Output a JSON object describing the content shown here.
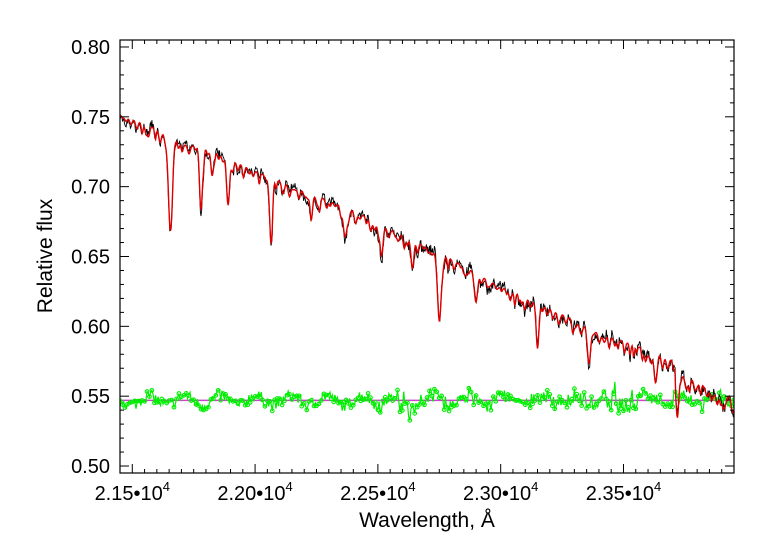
{
  "chart_data": {
    "type": "line",
    "xlabel": "Wavelength, Å",
    "ylabel": "Relative flux",
    "xlim": [
      21450,
      23950
    ],
    "ylim": [
      0.495,
      0.805
    ],
    "x_ticks": [
      21500,
      22000,
      22500,
      23000,
      23500
    ],
    "x_tick_labels": [
      {
        "mant": "2.15•10",
        "exp": "4"
      },
      {
        "mant": "2.20•10",
        "exp": "4"
      },
      {
        "mant": "2.25•10",
        "exp": "4"
      },
      {
        "mant": "2.30•10",
        "exp": "4"
      },
      {
        "mant": "2.35•10",
        "exp": "4"
      }
    ],
    "y_ticks": [
      0.5,
      0.55,
      0.6,
      0.65,
      0.7,
      0.75,
      0.8
    ],
    "y_tick_labels": [
      "0.50",
      "0.55",
      "0.60",
      "0.65",
      "0.70",
      "0.75",
      "0.80"
    ],
    "grid": false,
    "continuum": [
      [
        21450,
        0.752
      ],
      [
        21550,
        0.745
      ],
      [
        21650,
        0.737
      ],
      [
        21700,
        0.73
      ],
      [
        21800,
        0.728
      ],
      [
        22000,
        0.711
      ],
      [
        22200,
        0.697
      ],
      [
        22400,
        0.683
      ],
      [
        22600,
        0.665
      ],
      [
        22800,
        0.648
      ],
      [
        23000,
        0.628
      ],
      [
        23200,
        0.613
      ],
      [
        23400,
        0.595
      ],
      [
        23600,
        0.583
      ],
      [
        23800,
        0.568
      ],
      [
        23950,
        0.556
      ]
    ],
    "absorption_lines": [
      {
        "x": 21655,
        "depth": 0.067,
        "width": 8
      },
      {
        "x": 21780,
        "depth": 0.04,
        "width": 6
      },
      {
        "x": 21825,
        "depth": 0.018,
        "width": 5
      },
      {
        "x": 21890,
        "depth": 0.03,
        "width": 6
      },
      {
        "x": 22065,
        "depth": 0.042,
        "width": 6
      },
      {
        "x": 22230,
        "depth": 0.015,
        "width": 5
      },
      {
        "x": 22365,
        "depth": 0.015,
        "width": 6
      },
      {
        "x": 22515,
        "depth": 0.018,
        "width": 6
      },
      {
        "x": 22640,
        "depth": 0.015,
        "width": 6
      },
      {
        "x": 22750,
        "depth": 0.048,
        "width": 7
      },
      {
        "x": 22900,
        "depth": 0.02,
        "width": 6
      },
      {
        "x": 23150,
        "depth": 0.025,
        "width": 6
      },
      {
        "x": 23360,
        "depth": 0.025,
        "width": 6
      },
      {
        "x": 23630,
        "depth": 0.02,
        "width": 6
      },
      {
        "x": 23720,
        "depth": 0.028,
        "width": 5
      }
    ],
    "series": [
      {
        "name": "",
        "role": "observed",
        "color": "#000000"
      },
      {
        "name": "",
        "role": "model",
        "color": "#dd0000"
      },
      {
        "name": "",
        "role": "residuals",
        "color": "#00ee00"
      },
      {
        "name": "",
        "role": "residual-zero-line",
        "color": "#cc44cc",
        "value": 0.547
      }
    ],
    "residual_offset": 0.547
  }
}
